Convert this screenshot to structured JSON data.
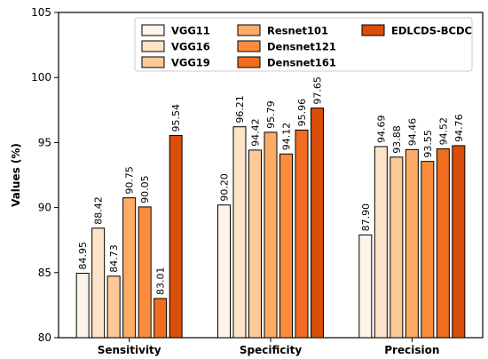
{
  "chart_data": {
    "type": "bar",
    "categories": [
      "Sensitivity",
      "Specificity",
      "Precision"
    ],
    "ylabel": "Values (%)",
    "xlabel": "",
    "ylim": [
      80,
      105
    ],
    "yticks": [
      80,
      85,
      90,
      95,
      100,
      105
    ],
    "legend_position": "top-right",
    "grid": false,
    "series": [
      {
        "name": "VGG11",
        "color": "#fef4e8",
        "values": [
          84.95,
          90.2,
          87.9
        ],
        "labels": [
          "84.95",
          "90.20",
          "87.90"
        ]
      },
      {
        "name": "VGG16",
        "color": "#fde3c7",
        "values": [
          88.42,
          96.21,
          94.69
        ],
        "labels": [
          "88.42",
          "96.21",
          "94.69"
        ]
      },
      {
        "name": "VGG19",
        "color": "#fdca97",
        "values": [
          84.73,
          94.42,
          93.88
        ],
        "labels": [
          "84.73",
          "94.42",
          "93.88"
        ]
      },
      {
        "name": "Resnet101",
        "color": "#fdab66",
        "values": [
          90.75,
          95.79,
          94.46
        ],
        "labels": [
          "90.75",
          "95.79",
          "94.46"
        ]
      },
      {
        "name": "Densnet121",
        "color": "#fb8c3d",
        "values": [
          90.05,
          94.12,
          93.55
        ],
        "labels": [
          "90.05",
          "94.12",
          "93.55"
        ]
      },
      {
        "name": "Densnet161",
        "color": "#f06c1f",
        "values": [
          83.01,
          95.96,
          94.52
        ],
        "labels": [
          "83.01",
          "95.96",
          "94.52"
        ]
      },
      {
        "name": "EDLCDS-BCDC",
        "color": "#d94e09",
        "values": [
          95.54,
          97.65,
          94.76
        ],
        "labels": [
          "95.54",
          "97.65",
          "94.76"
        ]
      }
    ]
  }
}
